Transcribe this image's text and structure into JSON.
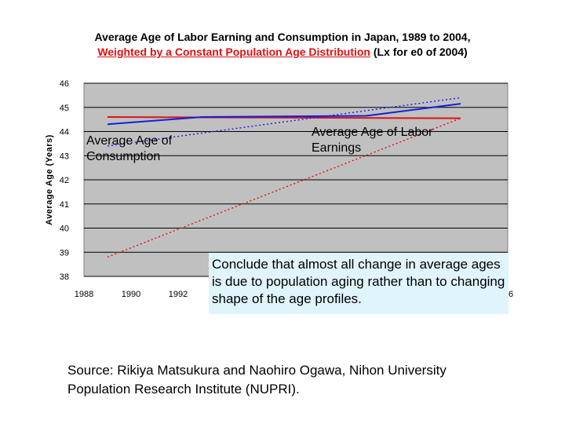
{
  "chart_data": {
    "type": "line",
    "title_line1": "Average Age of Labor Earning and Consumption in Japan, 1989 to 2004,",
    "title_line2_red": "Weighted by a Constant Population Age Distribution",
    "title_line2_rest": " (Lx for e0 of 2004)",
    "ylabel": "Average Age (Years)",
    "xlabel": "",
    "ylim": [
      38,
      46
    ],
    "xlim": [
      1988,
      2006
    ],
    "y_ticks": [
      "38",
      "39",
      "40",
      "41",
      "42",
      "43",
      "44",
      "45",
      "46"
    ],
    "x_ticks_visible": [
      "1988",
      "1990",
      "1992"
    ],
    "x_tick_partial_right": "6",
    "grid": "horizontal",
    "series": [
      {
        "style": "solid",
        "color": "#e01010",
        "x": [
          1989,
          2004
        ],
        "y": [
          44.6,
          44.55
        ]
      },
      {
        "style": "solid",
        "color": "#1020e0",
        "x": [
          1989,
          1993,
          2000,
          2004
        ],
        "y": [
          44.3,
          44.6,
          44.65,
          45.15
        ]
      },
      {
        "style": "dotted",
        "color": "#e01010",
        "x": [
          1989,
          2004
        ],
        "y": [
          38.8,
          44.55
        ]
      },
      {
        "style": "dotted",
        "color": "#1020e0",
        "x": [
          1989,
          2004
        ],
        "y": [
          43.4,
          45.4
        ]
      }
    ],
    "annotations": {
      "consumption": "Average Age of Consumption",
      "labor": "Average Age of Labor Earnings"
    }
  },
  "note": "Conclude that almost all change in average ages is due to population aging rather than to changing shape of the age profiles.",
  "source": "Source: Rikiya Matsukura and Naohiro Ogawa, Nihon University Population Research Institute (NUPRI)."
}
